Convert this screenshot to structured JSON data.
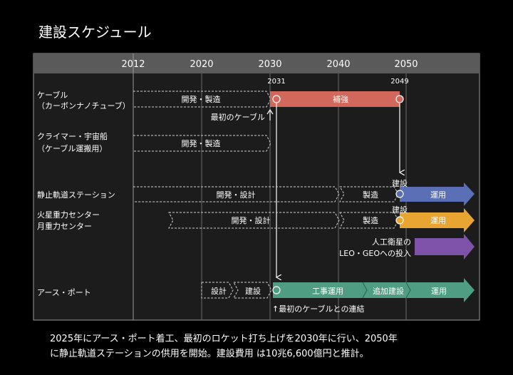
{
  "title": "建設スケジュール",
  "years": [
    "2012",
    "2020",
    "2030",
    "2040",
    "2050"
  ],
  "markers": {
    "start": "2031",
    "end": "2049"
  },
  "rows": {
    "cable": {
      "label1": "ケーブル",
      "label2": "（カーボンナノチューブ）"
    },
    "climber": {
      "label1": "クライマー・宇宙船",
      "label2": "（ケーブル運搬用）"
    },
    "station": {
      "label1": "静止軌道ステーション"
    },
    "centers": {
      "label1": "火星重力センター",
      "label2": "月重力センター"
    },
    "port": {
      "label1": "アース・ポート"
    }
  },
  "bars": {
    "cable_dev": "開発・製造",
    "cable_reinforce": "補強",
    "climber_dev": "開発・製造",
    "station_dev": "開発・設計",
    "station_mfg": "製造",
    "station_build": "建設",
    "station_ops": "運用",
    "centers_dev": "開発・設計",
    "centers_mfg": "製造",
    "centers_build": "建設",
    "centers_ops": "運用",
    "satellite_line1": "人工衛星の",
    "satellite_line2": "LEO・GEOへの投入",
    "port_design": "設計",
    "port_build": "建設",
    "port_works": "工事運用",
    "port_extra": "追加建設",
    "port_ops": "運用"
  },
  "annotations": {
    "first_cable": "最初のケーブル",
    "first_cable_link": "↑最初のケーブルとの連結"
  },
  "caption": {
    "line1": "2025年にアース・ポート着工、最初のロケット打ち上げを2030年に行い、2050年",
    "line2": "に静止軌道ステーションの供用を開始。建設費用 は10兆6,600億円と推計。"
  },
  "colors": {
    "background": "#000000",
    "panel": "#1c1c1c",
    "header": "#5a5a5a",
    "reinforce": "#d2675c",
    "operation_blue": "#5b6fb6",
    "operation_orange": "#e8a531",
    "satellite_purple": "#7d52a8",
    "port_green": "#4f9e84"
  }
}
